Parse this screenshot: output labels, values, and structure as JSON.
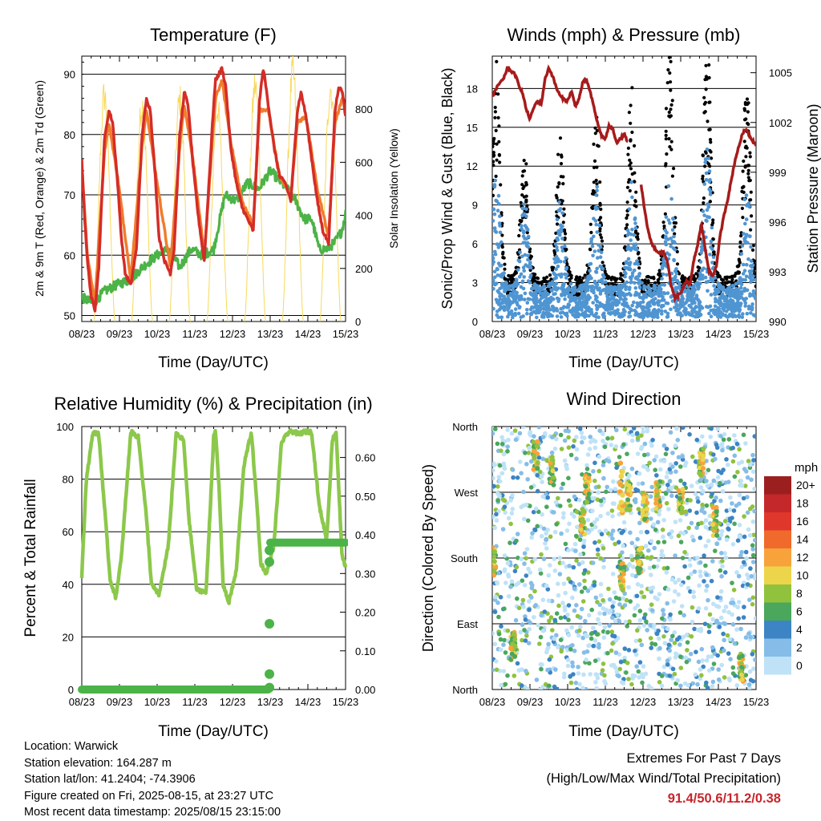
{
  "panels": {
    "temperature": {
      "title": "Temperature (F)",
      "ylabel": "2m & 9m T (Red, Orange) & 2m Td (Green)",
      "y2label": "Solar Insolation (Yellow)",
      "xlabel": "Time (Day/UTC)"
    },
    "winds": {
      "title": "Winds (mph) & Pressure (mb)",
      "ylabel": "Sonic/Prop Wind & Gust (Blue, Black)",
      "y2label": "Station Pressure (Maroon)",
      "xlabel": "Time (Day/UTC)"
    },
    "humidity": {
      "title": "Relative Humidity (%) & Precipitation (in)",
      "ylabel": "Percent & Total Rainfall",
      "xlabel": "Time (Day/UTC)"
    },
    "direction": {
      "title": "Wind Direction",
      "ylabel": "Direction (Colored By Speed)",
      "xlabel": "Time (Day/UTC)",
      "legend_title": "mph"
    }
  },
  "info": {
    "location": "Location: Warwick",
    "elevation": "Station elevation: 164.287 m",
    "latlon": "Station lat/lon: 41.2404; -74.3906",
    "created": "Figure created on Fri, 2025-08-15, at 23:27 UTC",
    "recent": "Most recent data timestamp: 2025/08/15 23:15:00"
  },
  "extremes": {
    "line1": "Extremes For Past 7 Days",
    "line2": "(High/Low/Max Wind/Total Precipitation)",
    "values": "91.4/50.6/11.2/0.38"
  },
  "colors": {
    "temp_2m": "#d42d27",
    "temp_9m": "#f07c2c",
    "dewpoint": "#4bb348",
    "solar": "#f7d95a",
    "wind": "#4f95d2",
    "gust": "#000000",
    "pressure": "#a61b1b",
    "rh": "#8cc84b",
    "precip": "#4bb348"
  },
  "chart_data": [
    {
      "type": "line",
      "title": "Temperature (F)",
      "xlabel": "Time (Day/UTC)",
      "ylabel": "2m & 9m T (Red, Orange) & 2m Td (Green)",
      "y2label": "Solar Insolation (Yellow)",
      "x_ticks": [
        "08/23",
        "09/23",
        "10/23",
        "11/23",
        "12/23",
        "13/23",
        "14/23",
        "15/23"
      ],
      "xlim": [
        0,
        7
      ],
      "ylim": [
        49,
        93
      ],
      "y_ticks": [
        50,
        60,
        70,
        80,
        90
      ],
      "y2lim": [
        0,
        1000
      ],
      "y2_ticks": [
        0,
        200,
        400,
        600,
        800
      ],
      "series": [
        {
          "name": "2m T",
          "color": "#d42d27",
          "x": [
            0,
            0.03,
            0.08,
            0.15,
            0.25,
            0.35,
            0.45,
            0.6,
            0.72,
            0.82,
            0.95,
            1.05,
            1.15,
            1.3,
            1.45,
            1.6,
            1.72,
            1.82,
            1.95,
            2.05,
            2.2,
            2.35,
            2.45,
            2.6,
            2.72,
            2.82,
            2.95,
            3.1,
            3.25,
            3.5,
            3.55,
            3.72,
            3.82,
            3.95,
            4.1,
            4.25,
            4.4,
            4.55,
            4.72,
            4.82,
            4.95,
            5.1,
            5.25,
            5.4,
            5.55,
            5.72,
            5.82,
            5.95,
            6.1,
            6.25,
            6.4,
            6.55,
            6.72,
            6.82,
            6.92,
            7.0
          ],
          "y": [
            76,
            72,
            66,
            59,
            53,
            51,
            58,
            79,
            84,
            82,
            72,
            63,
            57,
            55,
            61,
            80,
            86,
            84,
            73,
            63,
            59,
            57,
            61,
            80,
            87,
            85,
            75,
            66,
            59,
            85,
            89,
            91,
            88,
            78,
            72,
            68,
            66,
            64,
            86,
            91,
            85,
            78,
            73,
            72,
            69,
            84,
            87,
            83,
            76,
            69,
            64,
            62,
            84,
            88,
            87,
            83
          ]
        },
        {
          "name": "9m T",
          "color": "#f07c2c",
          "x": [
            0,
            0.15,
            0.35,
            0.6,
            0.72,
            0.95,
            1.3,
            1.6,
            1.72,
            1.95,
            2.35,
            2.6,
            2.72,
            2.95,
            3.25,
            3.55,
            3.72,
            3.95,
            4.25,
            4.55,
            4.72,
            4.95,
            5.25,
            5.55,
            5.72,
            5.95,
            6.25,
            6.55,
            6.72,
            6.92
          ],
          "y": [
            75,
            60,
            52,
            77,
            82,
            73,
            56,
            78,
            84,
            74,
            58,
            78,
            85,
            76,
            60,
            86,
            89,
            79,
            69,
            65,
            84,
            84,
            73,
            70,
            82,
            83,
            71,
            63,
            82,
            86
          ]
        },
        {
          "name": "2m Td",
          "color": "#4bb348",
          "x": [
            0,
            0.3,
            0.6,
            0.9,
            1.3,
            1.6,
            2.0,
            2.3,
            2.6,
            2.9,
            3.2,
            3.5,
            3.8,
            4.1,
            4.4,
            4.7,
            5.0,
            5.3,
            5.6,
            5.9,
            6.1,
            6.3,
            6.5,
            6.7,
            6.9,
            7.0
          ],
          "y": [
            53,
            52,
            54,
            55,
            56,
            58,
            60,
            61,
            58,
            61,
            60,
            61,
            70,
            69,
            72,
            71,
            74,
            72,
            70,
            66,
            66,
            61,
            61,
            62,
            64,
            67
          ]
        },
        {
          "name": "Solar",
          "color": "#f7d95a",
          "x_peaks": [
            0.6,
            1.6,
            2.6,
            3.6,
            4.6,
            5.6,
            6.6
          ],
          "peak_values": [
            920,
            880,
            900,
            870,
            960,
            1010,
            950
          ]
        }
      ]
    },
    {
      "type": "scatter",
      "title": "Winds (mph) & Pressure (mb)",
      "xlabel": "Time (Day/UTC)",
      "ylabel": "Sonic/Prop Wind & Gust (Blue, Black)",
      "y2label": "Station Pressure (Maroon)",
      "x_ticks": [
        "08/23",
        "09/23",
        "10/23",
        "11/23",
        "12/23",
        "13/23",
        "14/23",
        "15/23"
      ],
      "xlim": [
        0,
        7
      ],
      "ylim": [
        0,
        20.5
      ],
      "y_ticks": [
        0,
        3,
        6,
        9,
        12,
        15,
        18
      ],
      "y2lim": [
        990,
        1006
      ],
      "y2_ticks": [
        990,
        993,
        996,
        999,
        1002,
        1005
      ],
      "series": [
        {
          "name": "Pressure",
          "color": "#a61b1b",
          "segments": [
            {
              "x": [
                0,
                0.1,
                0.2,
                0.3,
                0.4,
                0.5,
                0.6,
                0.7,
                0.8,
                0.9,
                1.0,
                1.1,
                1.2,
                1.3,
                1.4,
                1.5,
                1.6,
                1.7,
                1.8,
                1.9,
                2.0,
                2.1,
                2.2,
                2.3,
                2.4,
                2.5,
                2.6,
                2.7,
                2.8,
                2.9,
                3.0,
                3.1,
                3.2,
                3.3,
                3.4,
                3.5,
                3.6
              ],
              "y": [
                1003.6,
                1004.0,
                1004.4,
                1004.6,
                1005.3,
                1005.1,
                1004.9,
                1004.3,
                1003.8,
                1002.8,
                1002.2,
                1002.9,
                1003.3,
                1003.1,
                1004.6,
                1005.3,
                1004.8,
                1004.1,
                1003.6,
                1003.4,
                1003.3,
                1003.9,
                1003.0,
                1003.4,
                1004.4,
                1004.6,
                1003.8,
                1002.9,
                1001.9,
                1001.2,
                1001.0,
                1001.8,
                1001.6,
                1000.8,
                1001.0,
                1001.3,
                1000.8
              ]
            },
            {
              "x": [
                3.95,
                4.05,
                4.15,
                4.25,
                4.35,
                4.45,
                4.55,
                4.65,
                4.75,
                4.85,
                4.95,
                5.05,
                5.15,
                5.25,
                5.35,
                5.45,
                5.55,
                5.65,
                5.75,
                5.85,
                5.95,
                6.05,
                6.15,
                6.25,
                6.35,
                6.45,
                6.55,
                6.65,
                6.75,
                6.85,
                6.95,
                7.0
              ],
              "y": [
                998.2,
                996.6,
                995.3,
                994.6,
                994.3,
                994.1,
                994.2,
                993.6,
                992.1,
                991.4,
                991.6,
                991.9,
                992.5,
                992.2,
                993.7,
                994.6,
                995.9,
                994.4,
                993.1,
                992.7,
                993.4,
                995.2,
                996.4,
                997.4,
                998.6,
                999.8,
                1000.6,
                1001.4,
                1001.6,
                1001.1,
                1000.8,
                1000.6
              ]
            }
          ]
        },
        {
          "name": "Wind",
          "color": "#4f95d2",
          "x_peaks": [
            0.1,
            0.85,
            1.8,
            2.75,
            3.7,
            4.7,
            5.7,
            6.75
          ],
          "peak_values": [
            9,
            7,
            7,
            8,
            8,
            9,
            11,
            8
          ]
        },
        {
          "name": "Gust",
          "color": "#000000",
          "x_peaks": [
            0.1,
            0.85,
            1.8,
            2.75,
            3.7,
            4.7,
            5.7,
            6.75
          ],
          "peak_values": [
            15,
            9,
            10,
            12,
            14,
            18,
            17,
            14
          ]
        }
      ]
    },
    {
      "type": "line",
      "title": "Relative Humidity (%) & Precipitation (in)",
      "xlabel": "Time (Day/UTC)",
      "ylabel": "Percent & Total Rainfall",
      "x_ticks": [
        "08/23",
        "09/23",
        "10/23",
        "11/23",
        "12/23",
        "13/23",
        "14/23",
        "15/23"
      ],
      "xlim": [
        0,
        7
      ],
      "ylim": [
        0,
        100
      ],
      "y_ticks": [
        0,
        20,
        40,
        60,
        80,
        100
      ],
      "y2lim": [
        0,
        0.68
      ],
      "y2_ticks": [
        0.0,
        0.1,
        0.2,
        0.3,
        0.4,
        0.5,
        0.6
      ],
      "series": [
        {
          "name": "RH",
          "color": "#8cc84b",
          "x": [
            0,
            0.12,
            0.3,
            0.45,
            0.6,
            0.75,
            0.9,
            1.05,
            1.3,
            1.5,
            1.7,
            1.85,
            2.05,
            2.3,
            2.5,
            2.7,
            2.85,
            3.05,
            3.3,
            3.5,
            3.55,
            3.65,
            3.75,
            3.9,
            4.1,
            4.3,
            4.5,
            4.65,
            4.75,
            4.9,
            5.1,
            5.3,
            5.5,
            5.65,
            5.75,
            5.9,
            6.1,
            6.3,
            6.5,
            6.65,
            6.75,
            6.9,
            7.0
          ],
          "y": [
            43,
            80,
            98,
            97,
            70,
            42,
            35,
            50,
            98,
            96,
            68,
            40,
            36,
            55,
            97,
            95,
            64,
            38,
            37,
            96,
            98,
            75,
            40,
            33,
            45,
            85,
            98,
            70,
            48,
            44,
            55,
            94,
            98,
            98,
            97,
            98,
            98,
            70,
            57,
            95,
            98,
            52,
            46
          ]
        },
        {
          "name": "Precip",
          "color": "#4bb348",
          "x": [
            0,
            1,
            2,
            3,
            4,
            4.9,
            4.95,
            4.98,
            5.0,
            5.02,
            5.05,
            6,
            7
          ],
          "y": [
            0,
            0,
            0,
            0,
            0,
            0,
            0.04,
            0.17,
            0.33,
            0.36,
            0.38,
            0.38,
            0.38
          ]
        }
      ]
    },
    {
      "type": "scatter",
      "title": "Wind Direction",
      "xlabel": "Time (Day/UTC)",
      "ylabel": "Direction (Colored By Speed)",
      "x_ticks": [
        "08/23",
        "09/23",
        "10/23",
        "11/23",
        "12/23",
        "13/23",
        "14/23",
        "15/23"
      ],
      "xlim": [
        0,
        7
      ],
      "y_ticks": [
        "North",
        "East",
        "South",
        "West",
        "North"
      ],
      "ylim": [
        0,
        360
      ],
      "colorbar": {
        "title": "mph",
        "labels": [
          "20+",
          "18",
          "16",
          "14",
          "12",
          "10",
          "8",
          "6",
          "4",
          "2",
          "0"
        ],
        "colors": [
          "#9c1f20",
          "#c5282a",
          "#e0372c",
          "#f06a2c",
          "#f8a23c",
          "#ecd54a",
          "#90c23e",
          "#4aa75c",
          "#3c84c3",
          "#86bde8",
          "#bfe2f7"
        ]
      }
    }
  ]
}
